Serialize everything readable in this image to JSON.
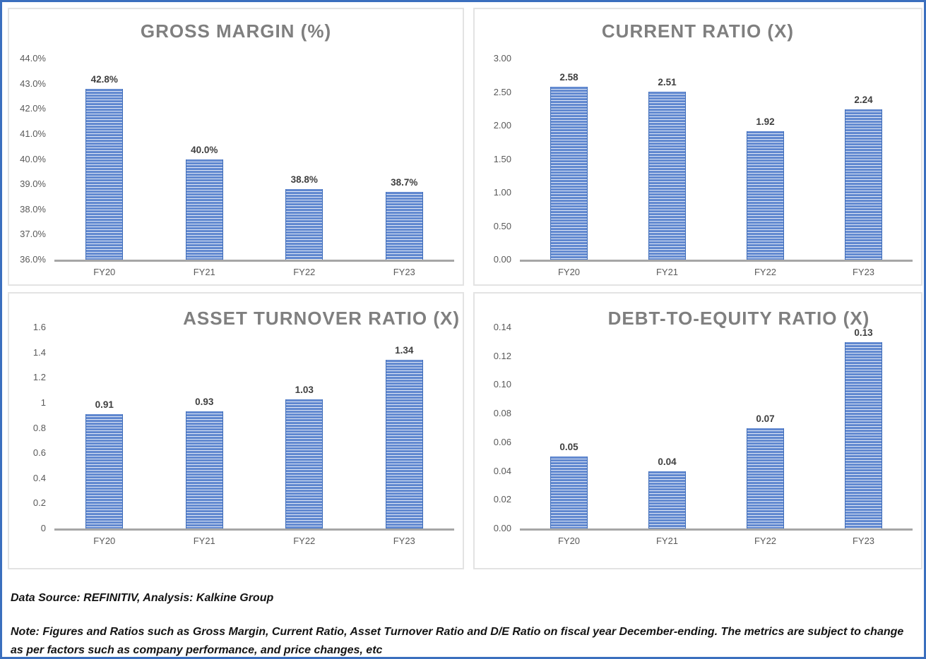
{
  "colors": {
    "bar_fill": "#4472c4",
    "bar_stripe": "#eef2fb",
    "title_text": "#7f7f7f",
    "axis_line": "#a6a6a6",
    "tick_text": "#595959",
    "value_label_text": "#3f3f3f",
    "outer_border": "#3b6fbe",
    "panel_border": "#e3e3e3"
  },
  "chart_data": [
    {
      "type": "bar",
      "title": "GROSS MARGIN (%)",
      "categories": [
        "FY20",
        "FY21",
        "FY22",
        "FY23"
      ],
      "values": [
        42.8,
        40.0,
        38.8,
        38.7
      ],
      "labels": [
        "42.8%",
        "40.0%",
        "38.8%",
        "38.7%"
      ],
      "ylim": [
        36,
        44
      ],
      "grid": false,
      "legend": "none",
      "yticks": [
        {
          "value": 36,
          "label": "36.0%"
        },
        {
          "value": 37,
          "label": "37.0%"
        },
        {
          "value": 38,
          "label": "38.0%"
        },
        {
          "value": 39,
          "label": "39.0%"
        },
        {
          "value": 40,
          "label": "40.0%"
        },
        {
          "value": 41,
          "label": "41.0%"
        },
        {
          "value": 42,
          "label": "42.0%"
        },
        {
          "value": 43,
          "label": "43.0%"
        },
        {
          "value": 44,
          "label": "44.0%"
        }
      ]
    },
    {
      "type": "bar",
      "title": "CURRENT RATIO (X)",
      "categories": [
        "FY20",
        "FY21",
        "FY22",
        "FY23"
      ],
      "values": [
        2.58,
        2.51,
        1.92,
        2.24
      ],
      "labels": [
        "2.58",
        "2.51",
        "1.92",
        "2.24"
      ],
      "ylim": [
        0,
        3
      ],
      "grid": false,
      "legend": "none",
      "yticks": [
        {
          "value": 0,
          "label": "0.00"
        },
        {
          "value": 0.5,
          "label": "0.50"
        },
        {
          "value": 1,
          "label": "1.00"
        },
        {
          "value": 1.5,
          "label": "1.50"
        },
        {
          "value": 2,
          "label": "2.00"
        },
        {
          "value": 2.5,
          "label": "2.50"
        },
        {
          "value": 3,
          "label": "3.00"
        }
      ]
    },
    {
      "type": "bar",
      "title": "ASSET TURNOVER RATIO (X)",
      "categories": [
        "FY20",
        "FY21",
        "FY22",
        "FY23"
      ],
      "values": [
        0.91,
        0.93,
        1.03,
        1.34
      ],
      "labels": [
        "0.91",
        "0.93",
        "1.03",
        "1.34"
      ],
      "ylim": [
        0,
        1.6
      ],
      "grid": false,
      "legend": "none",
      "yticks": [
        {
          "value": 0,
          "label": "0"
        },
        {
          "value": 0.2,
          "label": "0.2"
        },
        {
          "value": 0.4,
          "label": "0.4"
        },
        {
          "value": 0.6,
          "label": "0.6"
        },
        {
          "value": 0.8,
          "label": "0.8"
        },
        {
          "value": 1,
          "label": "1"
        },
        {
          "value": 1.2,
          "label": "1.2"
        },
        {
          "value": 1.4,
          "label": "1.4"
        },
        {
          "value": 1.6,
          "label": "1.6"
        }
      ]
    },
    {
      "type": "bar",
      "title": "DEBT-TO-EQUITY RATIO (X)",
      "categories": [
        "FY20",
        "FY21",
        "FY22",
        "FY23"
      ],
      "values": [
        0.05,
        0.04,
        0.07,
        0.13
      ],
      "labels": [
        "0.05",
        "0.04",
        "0.07",
        "0.13"
      ],
      "ylim": [
        0,
        0.14
      ],
      "grid": false,
      "legend": "none",
      "yticks": [
        {
          "value": 0,
          "label": "0.00"
        },
        {
          "value": 0.02,
          "label": "0.02"
        },
        {
          "value": 0.04,
          "label": "0.04"
        },
        {
          "value": 0.06,
          "label": "0.06"
        },
        {
          "value": 0.08,
          "label": "0.08"
        },
        {
          "value": 0.1,
          "label": "0.10"
        },
        {
          "value": 0.12,
          "label": "0.12"
        },
        {
          "value": 0.14,
          "label": "0.14"
        }
      ]
    }
  ],
  "footer": {
    "source_line": "Data Source: REFINITIV, Analysis: Kalkine Group",
    "note_line": "Note: Figures and Ratios such as Gross Margin, Current Ratio, Asset Turnover Ratio and D/E Ratio on fiscal year December-ending. The metrics are subject to change as per factors such as company performance, and price changes, etc"
  }
}
